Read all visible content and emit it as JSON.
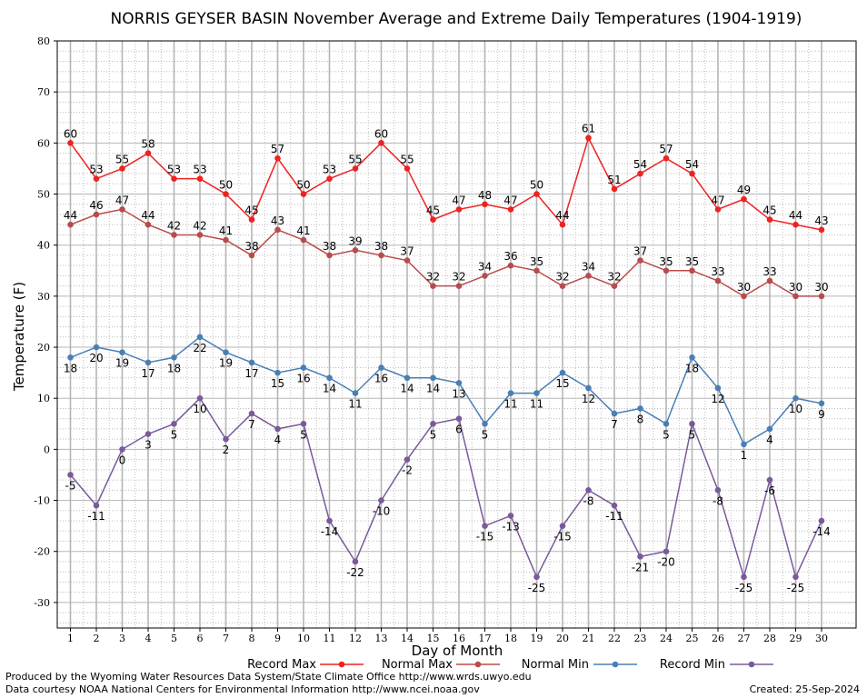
{
  "chart_data": {
    "type": "line",
    "title": "NORRIS GEYSER BASIN November Average and Extreme Daily Temperatures (1904-1919)",
    "xlabel": "Day of Month",
    "ylabel": "Temperature (F)",
    "ylim": [
      -35,
      80
    ],
    "yticks": [
      -30,
      -20,
      -10,
      0,
      10,
      20,
      30,
      40,
      50,
      60,
      70,
      80
    ],
    "x": [
      1,
      2,
      3,
      4,
      5,
      6,
      7,
      8,
      9,
      10,
      11,
      12,
      13,
      14,
      15,
      16,
      17,
      18,
      19,
      20,
      21,
      22,
      23,
      24,
      25,
      26,
      27,
      28,
      29,
      30
    ],
    "grid": true,
    "legend_position": "bottom",
    "series": [
      {
        "name": "Record Max",
        "color": "#ee2222",
        "label_pos": "above",
        "values": [
          60,
          53,
          55,
          58,
          53,
          53,
          50,
          45,
          57,
          50,
          53,
          55,
          60,
          55,
          45,
          47,
          48,
          47,
          50,
          44,
          61,
          51,
          54,
          57,
          54,
          47,
          49,
          45,
          44,
          43
        ]
      },
      {
        "name": "Normal Max",
        "color": "#b84c4c",
        "label_pos": "above",
        "values": [
          44,
          46,
          47,
          44,
          42,
          42,
          41,
          38,
          43,
          41,
          38,
          39,
          38,
          37,
          32,
          32,
          34,
          36,
          35,
          32,
          34,
          32,
          37,
          35,
          35,
          33,
          30,
          33,
          30,
          30
        ]
      },
      {
        "name": "Normal Min",
        "color": "#4a7fb5",
        "label_pos": "below",
        "values": [
          18,
          20,
          19,
          17,
          18,
          22,
          19,
          17,
          15,
          16,
          14,
          11,
          16,
          14,
          14,
          13,
          5,
          11,
          11,
          15,
          12,
          7,
          8,
          5,
          18,
          12,
          1,
          4,
          10,
          9
        ]
      },
      {
        "name": "Record Min",
        "color": "#7a5a9a",
        "label_pos": "below",
        "values": [
          -5,
          -11,
          0,
          3,
          5,
          10,
          2,
          7,
          4,
          5,
          -14,
          -22,
          -10,
          -2,
          5,
          6,
          -15,
          -13,
          -25,
          -15,
          -8,
          -11,
          -21,
          -20,
          5,
          -8,
          -25,
          -6,
          -25,
          -14
        ]
      }
    ]
  },
  "footer": {
    "produced_by": "Produced by the Wyoming Water Resources Data System/State Climate Office http://www.wrds.uwyo.edu",
    "courtesy": "Data courtesy NOAA National Centers for Environmental Information http://www.ncei.noaa.gov",
    "created": "Created:  25-Sep-2024"
  }
}
